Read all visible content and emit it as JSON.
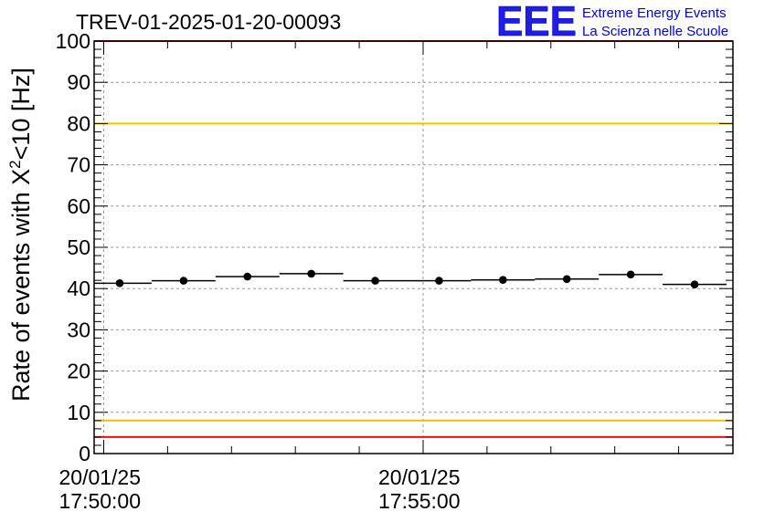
{
  "chart_data": {
    "type": "scatter",
    "title": "TREV-01-2025-01-20-00093",
    "ylabel": {
      "main": "Rate of events with X",
      "superscript": "2",
      "suffix": "<10 [Hz]"
    },
    "xlabel": "",
    "ylim": [
      0,
      100
    ],
    "yticks": [
      0,
      10,
      20,
      30,
      40,
      50,
      60,
      70,
      80,
      90,
      100
    ],
    "xlim_minutes": [
      -0.15,
      9.85
    ],
    "x_tick_labels": [
      {
        "minute": 0,
        "date": "20/01/25",
        "time": "17:50:00"
      },
      {
        "minute": 5,
        "date": "20/01/25",
        "time": "17:55:00"
      }
    ],
    "grid": true,
    "bin_width_minutes": 1,
    "points": [
      {
        "x_minute": 0.25,
        "y": 41.3
      },
      {
        "x_minute": 1.25,
        "y": 41.9
      },
      {
        "x_minute": 2.25,
        "y": 42.9
      },
      {
        "x_minute": 3.25,
        "y": 43.6
      },
      {
        "x_minute": 4.25,
        "y": 41.9
      },
      {
        "x_minute": 5.25,
        "y": 41.9
      },
      {
        "x_minute": 6.25,
        "y": 42.1
      },
      {
        "x_minute": 7.25,
        "y": 42.3
      },
      {
        "x_minute": 8.25,
        "y": 43.4
      },
      {
        "x_minute": 9.25,
        "y": 41.0
      }
    ],
    "reference_lines": [
      {
        "y": 100,
        "color": "#ee1111"
      },
      {
        "y": 80,
        "color": "#f2c200"
      },
      {
        "y": 8,
        "color": "#f2c200"
      },
      {
        "y": 4,
        "color": "#ee1111"
      }
    ]
  },
  "logo": {
    "mark": "EEE",
    "line1": "Extreme Energy Events",
    "line2": "La Scienza nelle Scuole",
    "color": "#1e1ee6"
  }
}
